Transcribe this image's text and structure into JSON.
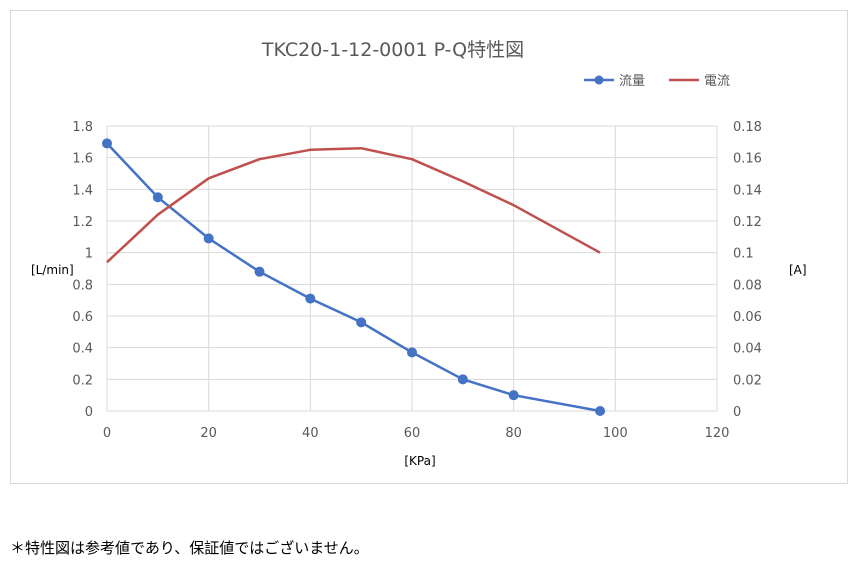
{
  "chart_data": {
    "type": "line",
    "title": "TKC20-1-12-0001 P-Q特性図",
    "xlabel": "[KPa]",
    "ylabel_left": "[L/min]",
    "ylabel_right": "[A]",
    "xlim": [
      0,
      120
    ],
    "xticks": [
      "0",
      "20",
      "40",
      "60",
      "80",
      "100",
      "120"
    ],
    "ylim_left": [
      0,
      1.8
    ],
    "yticks_left": [
      "0",
      "0.2",
      "0.4",
      "0.6",
      "0.8",
      "1",
      "1.2",
      "1.4",
      "1.6",
      "1.8"
    ],
    "ylim_right": [
      0,
      0.18
    ],
    "yticks_right": [
      "0",
      "0.02",
      "0.04",
      "0.06",
      "0.08",
      "0.1",
      "0.12",
      "0.14",
      "0.16",
      "0.18"
    ],
    "grid": true,
    "legend_position": "top-right",
    "series": [
      {
        "name": "流量",
        "axis": "left",
        "color": "#4472c4",
        "markers": true,
        "x": [
          0,
          10,
          20,
          30,
          40,
          50,
          60,
          70,
          80,
          97
        ],
        "y": [
          1.69,
          1.35,
          1.09,
          0.88,
          0.71,
          0.56,
          0.37,
          0.2,
          0.1,
          0.0
        ]
      },
      {
        "name": "電流",
        "axis": "right",
        "color": "#c0504d",
        "markers": false,
        "x": [
          0,
          10,
          20,
          30,
          40,
          50,
          60,
          70,
          80,
          97
        ],
        "y": [
          0.094,
          0.124,
          0.147,
          0.159,
          0.165,
          0.166,
          0.159,
          0.145,
          0.13,
          0.1
        ]
      }
    ]
  },
  "footnote": "＊特性図は参考値であり、保証値ではございません。"
}
